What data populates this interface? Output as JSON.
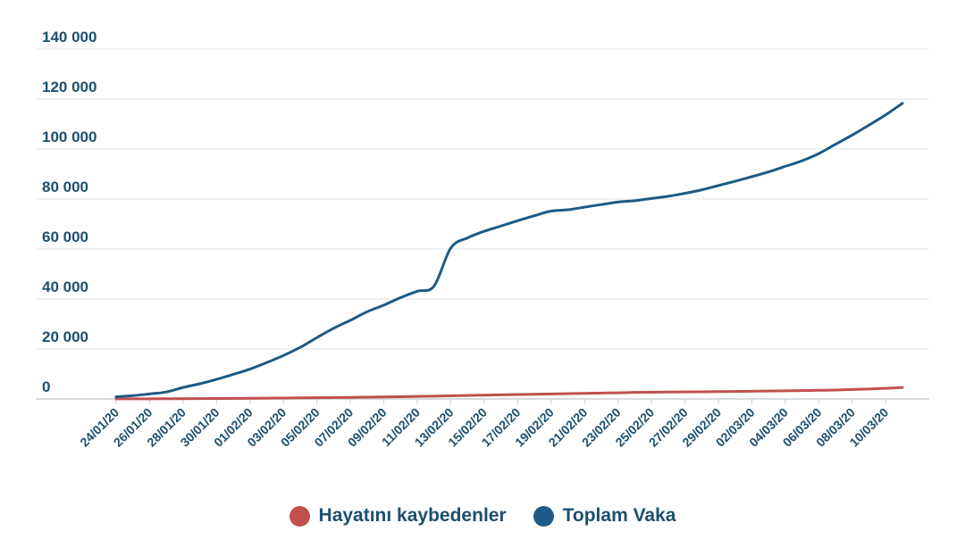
{
  "chart_data": {
    "type": "line",
    "ylim": [
      0,
      140000
    ],
    "y_ticks": [
      "0",
      "20 000",
      "40 000",
      "60 000",
      "80 000",
      "100 000",
      "120 000",
      "140 000"
    ],
    "x_tick_labels": [
      "24/01/20",
      "26/01/20",
      "28/01/20",
      "30/01/20",
      "01/02/20",
      "03/02/20",
      "05/02/20",
      "07/02/20",
      "09/02/20",
      "11/02/20",
      "13/02/20",
      "15/02/20",
      "17/02/20",
      "19/02/20",
      "21/02/20",
      "23/02/20",
      "25/02/20",
      "27/02/20",
      "29/02/20",
      "02/03/20",
      "04/03/20",
      "06/03/20",
      "08/03/20",
      "10/03/20"
    ],
    "x": [
      "24/01/20",
      "25/01/20",
      "26/01/20",
      "27/01/20",
      "28/01/20",
      "29/01/20",
      "30/01/20",
      "31/01/20",
      "01/02/20",
      "02/02/20",
      "03/02/20",
      "04/02/20",
      "05/02/20",
      "06/02/20",
      "07/02/20",
      "08/02/20",
      "09/02/20",
      "10/02/20",
      "11/02/20",
      "12/02/20",
      "13/02/20",
      "14/02/20",
      "15/02/20",
      "16/02/20",
      "17/02/20",
      "18/02/20",
      "19/02/20",
      "20/02/20",
      "21/02/20",
      "22/02/20",
      "23/02/20",
      "24/02/20",
      "25/02/20",
      "26/02/20",
      "27/02/20",
      "28/02/20",
      "29/02/20",
      "01/03/20",
      "02/03/20",
      "03/03/20",
      "04/03/20",
      "05/03/20",
      "06/03/20",
      "07/03/20",
      "08/03/20",
      "09/03/20",
      "10/03/20",
      "11/03/20"
    ],
    "grid": true,
    "legend_position": "bottom",
    "series": [
      {
        "name": "Hayatını kaybedenler",
        "color": "#c0504d",
        "values": [
          26,
          41,
          56,
          80,
          106,
          132,
          170,
          213,
          259,
          304,
          362,
          426,
          492,
          565,
          638,
          724,
          813,
          910,
          1018,
          1115,
          1261,
          1383,
          1526,
          1669,
          1775,
          1873,
          2009,
          2126,
          2247,
          2360,
          2460,
          2618,
          2699,
          2763,
          2800,
          2858,
          2941,
          2996,
          3085,
          3160,
          3254,
          3348,
          3460,
          3558,
          3803,
          3988,
          4262,
          4615
        ]
      },
      {
        "name": "Toplam Vaka",
        "color": "#1d5a85",
        "values": [
          846,
          1320,
          2014,
          2798,
          4593,
          6065,
          7818,
          9826,
          11953,
          14557,
          17391,
          20630,
          24554,
          28276,
          31481,
          34886,
          37558,
          40554,
          43103,
          45171,
          60374,
          64447,
          67100,
          69197,
          71329,
          73332,
          75184,
          75700,
          76767,
          77794,
          78811,
          79331,
          80239,
          81109,
          82294,
          83652,
          85403,
          87137,
          88948,
          90870,
          93090,
          95324,
          98192,
          101927,
          105592,
          109577,
          113702,
          118319
        ]
      }
    ]
  }
}
